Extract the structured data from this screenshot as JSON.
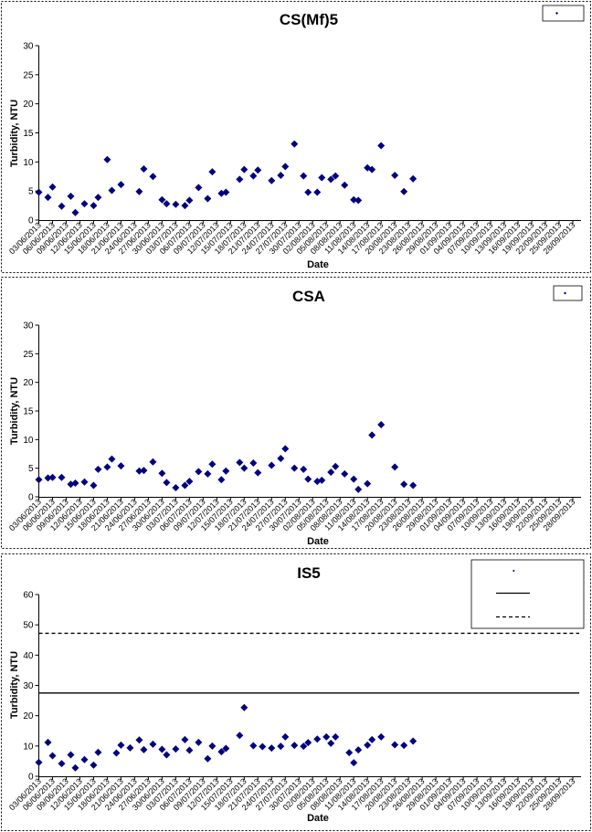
{
  "chart_data": [
    {
      "type": "scatter",
      "title": "CS(Mf)5",
      "xlabel": "Date",
      "ylabel": "Turbidity, NTU",
      "ylim": [
        0,
        30
      ],
      "yticks": [
        0,
        5,
        10,
        15,
        20,
        25,
        30
      ],
      "x_tick_labels": [
        "03/06/2013",
        "06/06/2013",
        "09/06/2013",
        "12/06/2013",
        "15/06/2013",
        "18/06/2013",
        "21/06/2013",
        "24/06/2013",
        "27/06/2013",
        "30/06/2013",
        "03/07/2013",
        "06/07/2013",
        "09/07/2013",
        "12/07/2013",
        "15/07/2013",
        "18/07/2013",
        "21/07/2013",
        "24/07/2013",
        "27/07/2013",
        "30/07/2013",
        "02/08/2013",
        "05/08/2013",
        "08/08/2013",
        "11/08/2013",
        "14/08/2013",
        "17/08/2013",
        "20/08/2013",
        "23/08/2013",
        "26/08/2013",
        "29/08/2013",
        "01/09/2013",
        "04/09/2013",
        "07/09/2013",
        "10/09/2013",
        "13/09/2013",
        "16/09/2013",
        "19/09/2013",
        "22/09/2013",
        "25/09/2013",
        "28/09/2013"
      ],
      "x_start": "03/06/2013",
      "x_end": "29/09/2013",
      "grid": false,
      "legend_position": "top-right",
      "marker_color": "#000080",
      "series": [
        {
          "points": [
            [
              "03/06/2013",
              4.8
            ],
            [
              "05/06/2013",
              3.9
            ],
            [
              "06/06/2013",
              5.7
            ],
            [
              "08/06/2013",
              2.4
            ],
            [
              "10/06/2013",
              4.1
            ],
            [
              "11/06/2013",
              1.3
            ],
            [
              "13/06/2013",
              2.8
            ],
            [
              "15/06/2013",
              2.5
            ],
            [
              "16/06/2013",
              3.9
            ],
            [
              "18/06/2013",
              10.4
            ],
            [
              "19/06/2013",
              5.1
            ],
            [
              "21/06/2013",
              6.1
            ],
            [
              "25/06/2013",
              4.9
            ],
            [
              "26/06/2013",
              8.8
            ],
            [
              "28/06/2013",
              7.5
            ],
            [
              "30/06/2013",
              3.5
            ],
            [
              "01/07/2013",
              2.8
            ],
            [
              "03/07/2013",
              2.7
            ],
            [
              "05/07/2013",
              2.5
            ],
            [
              "06/07/2013",
              3.4
            ],
            [
              "08/07/2013",
              5.6
            ],
            [
              "10/07/2013",
              3.7
            ],
            [
              "11/07/2013",
              8.3
            ],
            [
              "13/07/2013",
              4.6
            ],
            [
              "14/07/2013",
              4.8
            ],
            [
              "17/07/2013",
              7.0
            ],
            [
              "18/07/2013",
              8.7
            ],
            [
              "20/07/2013",
              7.6
            ],
            [
              "21/07/2013",
              8.6
            ],
            [
              "24/07/2013",
              6.8
            ],
            [
              "26/07/2013",
              7.7
            ],
            [
              "27/07/2013",
              9.2
            ],
            [
              "29/07/2013",
              13.1
            ],
            [
              "31/07/2013",
              7.6
            ],
            [
              "01/08/2013",
              4.8
            ],
            [
              "03/08/2013",
              4.8
            ],
            [
              "04/08/2013",
              7.3
            ],
            [
              "06/08/2013",
              7.0
            ],
            [
              "07/08/2013",
              7.6
            ],
            [
              "09/08/2013",
              6.0
            ],
            [
              "11/08/2013",
              3.5
            ],
            [
              "12/08/2013",
              3.4
            ],
            [
              "14/08/2013",
              9.0
            ],
            [
              "15/08/2013",
              8.7
            ],
            [
              "17/08/2013",
              12.8
            ],
            [
              "20/08/2013",
              7.7
            ],
            [
              "22/08/2013",
              4.9
            ],
            [
              "24/08/2013",
              7.1
            ]
          ]
        }
      ]
    },
    {
      "type": "scatter",
      "title": "CSA",
      "xlabel": "Date",
      "ylabel": "Turbidity, NTU",
      "ylim": [
        0,
        30
      ],
      "yticks": [
        0,
        5,
        10,
        15,
        20,
        25,
        30
      ],
      "x_tick_labels": [
        "03/06/2013",
        "06/06/2013",
        "09/06/2013",
        "12/06/2013",
        "15/06/2013",
        "18/06/2013",
        "21/06/2013",
        "24/06/2013",
        "27/06/2013",
        "30/06/2013",
        "03/07/2013",
        "06/07/2013",
        "09/07/2013",
        "12/07/2013",
        "15/07/2013",
        "18/07/2013",
        "21/07/2013",
        "24/07/2013",
        "27/07/2013",
        "30/07/2013",
        "02/08/2013",
        "05/08/2013",
        "08/08/2013",
        "11/08/2013",
        "14/08/2013",
        "17/08/2013",
        "20/08/2013",
        "23/08/2013",
        "26/08/2013",
        "29/08/2013",
        "01/09/2013",
        "04/09/2013",
        "07/09/2013",
        "10/09/2013",
        "13/09/2013",
        "16/09/2013",
        "19/09/2013",
        "22/09/2013",
        "25/09/2013",
        "28/09/2013"
      ],
      "x_start": "03/06/2013",
      "x_end": "29/09/2013",
      "grid": false,
      "legend_position": "top-right",
      "marker_color": "#000080",
      "series": [
        {
          "points": [
            [
              "03/06/2013",
              3.0
            ],
            [
              "05/06/2013",
              3.3
            ],
            [
              "06/06/2013",
              3.4
            ],
            [
              "08/06/2013",
              3.4
            ],
            [
              "10/06/2013",
              2.2
            ],
            [
              "11/06/2013",
              2.4
            ],
            [
              "13/06/2013",
              2.6
            ],
            [
              "15/06/2013",
              2.0
            ],
            [
              "16/06/2013",
              4.8
            ],
            [
              "18/06/2013",
              5.2
            ],
            [
              "19/06/2013",
              6.6
            ],
            [
              "21/06/2013",
              5.4
            ],
            [
              "25/06/2013",
              4.5
            ],
            [
              "26/06/2013",
              4.6
            ],
            [
              "28/06/2013",
              6.1
            ],
            [
              "30/06/2013",
              4.1
            ],
            [
              "01/07/2013",
              2.5
            ],
            [
              "03/07/2013",
              1.6
            ],
            [
              "05/07/2013",
              2.0
            ],
            [
              "06/07/2013",
              2.7
            ],
            [
              "08/07/2013",
              4.4
            ],
            [
              "10/07/2013",
              4.0
            ],
            [
              "11/07/2013",
              5.7
            ],
            [
              "13/07/2013",
              3.0
            ],
            [
              "14/07/2013",
              4.5
            ],
            [
              "17/07/2013",
              6.0
            ],
            [
              "18/07/2013",
              5.0
            ],
            [
              "20/07/2013",
              5.9
            ],
            [
              "21/07/2013",
              4.2
            ],
            [
              "24/07/2013",
              5.5
            ],
            [
              "26/07/2013",
              6.7
            ],
            [
              "27/07/2013",
              8.4
            ],
            [
              "29/07/2013",
              5.0
            ],
            [
              "31/07/2013",
              4.8
            ],
            [
              "01/08/2013",
              3.1
            ],
            [
              "03/08/2013",
              2.7
            ],
            [
              "04/08/2013",
              2.9
            ],
            [
              "06/08/2013",
              4.3
            ],
            [
              "07/08/2013",
              5.3
            ],
            [
              "09/08/2013",
              4.0
            ],
            [
              "11/08/2013",
              3.1
            ],
            [
              "12/08/2013",
              1.3
            ],
            [
              "14/08/2013",
              2.3
            ],
            [
              "15/08/2013",
              10.8
            ],
            [
              "17/08/2013",
              12.6
            ],
            [
              "20/08/2013",
              5.2
            ],
            [
              "22/08/2013",
              2.2
            ],
            [
              "24/08/2013",
              2.0
            ]
          ]
        }
      ]
    },
    {
      "type": "scatter",
      "title": "IS5",
      "xlabel": "Date",
      "ylabel": "Turbidity, NTU",
      "ylim": [
        0,
        60
      ],
      "yticks": [
        0,
        10,
        20,
        30,
        40,
        50,
        60
      ],
      "x_tick_labels": [
        "03/06/2013",
        "06/06/2013",
        "09/06/2013",
        "12/06/2013",
        "15/06/2013",
        "18/06/2013",
        "21/06/2013",
        "24/06/2013",
        "27/06/2013",
        "30/06/2013",
        "03/07/2013",
        "06/07/2013",
        "09/07/2013",
        "12/07/2013",
        "15/07/2013",
        "18/07/2013",
        "21/07/2013",
        "24/07/2013",
        "27/07/2013",
        "30/07/2013",
        "02/08/2013",
        "05/08/2013",
        "08/08/2013",
        "11/08/2013",
        "14/08/2013",
        "17/08/2013",
        "20/08/2013",
        "23/08/2013",
        "26/08/2013",
        "29/08/2013",
        "01/09/2013",
        "04/09/2013",
        "07/09/2013",
        "10/09/2013",
        "13/09/2013",
        "16/09/2013",
        "19/09/2013",
        "22/09/2013",
        "25/09/2013",
        "28/09/2013"
      ],
      "x_start": "03/06/2013",
      "x_end": "29/09/2013",
      "grid": false,
      "legend_position": "top-right",
      "marker_color": "#000080",
      "reference_lines": [
        {
          "value": 27.5,
          "style": "solid",
          "color": "#000000"
        },
        {
          "value": 47.2,
          "style": "dashed",
          "color": "#000000"
        }
      ],
      "series": [
        {
          "points": [
            [
              "03/06/2013",
              4.6
            ],
            [
              "05/06/2013",
              11.2
            ],
            [
              "06/06/2013",
              6.8
            ],
            [
              "08/06/2013",
              4.2
            ],
            [
              "10/06/2013",
              7.1
            ],
            [
              "11/06/2013",
              2.8
            ],
            [
              "13/06/2013",
              5.5
            ],
            [
              "15/06/2013",
              3.7
            ],
            [
              "16/06/2013",
              7.9
            ],
            [
              "20/06/2013",
              7.7
            ],
            [
              "21/06/2013",
              10.3
            ],
            [
              "23/06/2013",
              9.4
            ],
            [
              "25/06/2013",
              12.0
            ],
            [
              "26/06/2013",
              8.8
            ],
            [
              "28/06/2013",
              10.6
            ],
            [
              "30/06/2013",
              8.9
            ],
            [
              "01/07/2013",
              7.1
            ],
            [
              "03/07/2013",
              9.0
            ],
            [
              "05/07/2013",
              12.1
            ],
            [
              "06/07/2013",
              8.6
            ],
            [
              "08/07/2013",
              11.2
            ],
            [
              "10/07/2013",
              5.8
            ],
            [
              "11/07/2013",
              10.0
            ],
            [
              "13/07/2013",
              8.1
            ],
            [
              "14/07/2013",
              9.2
            ],
            [
              "17/07/2013",
              13.5
            ],
            [
              "18/07/2013",
              22.7
            ],
            [
              "20/07/2013",
              10.1
            ],
            [
              "22/07/2013",
              9.8
            ],
            [
              "24/07/2013",
              9.3
            ],
            [
              "26/07/2013",
              9.9
            ],
            [
              "27/07/2013",
              13.0
            ],
            [
              "29/07/2013",
              10.2
            ],
            [
              "31/07/2013",
              9.9
            ],
            [
              "01/08/2013",
              11.1
            ],
            [
              "03/08/2013",
              12.3
            ],
            [
              "05/08/2013",
              13.0
            ],
            [
              "06/08/2013",
              10.9
            ],
            [
              "07/08/2013",
              13.0
            ],
            [
              "10/08/2013",
              7.8
            ],
            [
              "11/08/2013",
              4.5
            ],
            [
              "12/08/2013",
              8.7
            ],
            [
              "14/08/2013",
              10.3
            ],
            [
              "15/08/2013",
              12.1
            ],
            [
              "17/08/2013",
              13.0
            ],
            [
              "20/08/2013",
              10.4
            ],
            [
              "22/08/2013",
              10.2
            ],
            [
              "24/08/2013",
              11.6
            ]
          ]
        }
      ]
    }
  ]
}
